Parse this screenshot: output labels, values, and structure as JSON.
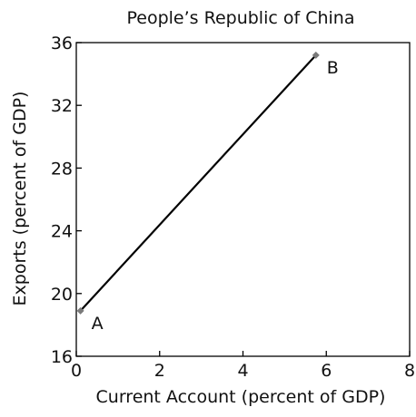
{
  "chart_data": {
    "type": "line",
    "title": "People’s Republic of China",
    "xlabel": "Current Account (percent of GDP)",
    "ylabel": "Exports (percent of GDP)",
    "xlim": [
      0,
      8
    ],
    "ylim": [
      16,
      36
    ],
    "xticks": [
      0,
      2,
      4,
      6,
      8
    ],
    "yticks": [
      16,
      20,
      24,
      28,
      32,
      36
    ],
    "grid": false,
    "legend": "none",
    "series": [
      {
        "x": [
          0.1,
          5.75
        ],
        "y": [
          18.9,
          35.2
        ],
        "color": "#000000",
        "marker_color": "#7a7a7a"
      }
    ],
    "annotations": [
      {
        "text": "A",
        "x": 0.1,
        "y": 18.9
      },
      {
        "text": "B",
        "x": 5.75,
        "y": 35.2
      }
    ]
  }
}
